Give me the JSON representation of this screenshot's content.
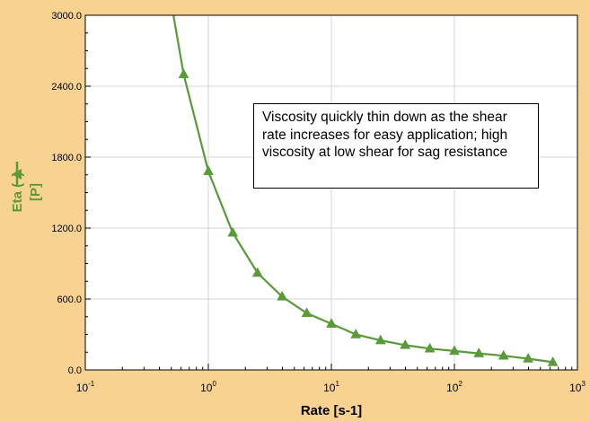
{
  "chart_data": {
    "type": "line",
    "title": "",
    "xlabel": "Rate [s-1]",
    "ylabel_main": "Eta (",
    "ylabel_close": ")",
    "ylabel_unit": "[P]",
    "x_scale": "log",
    "xlim": [
      0.1,
      1000
    ],
    "ylim": [
      0,
      3000
    ],
    "grid": true,
    "y_ticks": [
      "0.0",
      "600.0",
      "1200.0",
      "1800.0",
      "2400.0",
      "3000.0"
    ],
    "x_ticks": [
      {
        "base": "10",
        "exp": "-1"
      },
      {
        "base": "10",
        "exp": "0"
      },
      {
        "base": "10",
        "exp": "1"
      },
      {
        "base": "10",
        "exp": "2"
      },
      {
        "base": "10",
        "exp": "3"
      }
    ],
    "series": [
      {
        "name": "Eta",
        "color": "#5a9a3a",
        "marker": "triangle",
        "x": [
          0.63,
          1.0,
          1.58,
          2.51,
          3.98,
          6.31,
          10.0,
          15.8,
          25.1,
          39.8,
          63.1,
          100,
          158,
          251,
          398,
          631
        ],
        "y": [
          2500,
          1680,
          1160,
          820,
          620,
          480,
          390,
          300,
          250,
          210,
          180,
          160,
          140,
          120,
          95,
          65
        ]
      }
    ],
    "curve_start": {
      "x": 0.52,
      "y": 3000
    },
    "annotation": "Viscosity quickly thin down as the shear rate increases for easy application; high viscosity at low shear for sag resistance"
  }
}
